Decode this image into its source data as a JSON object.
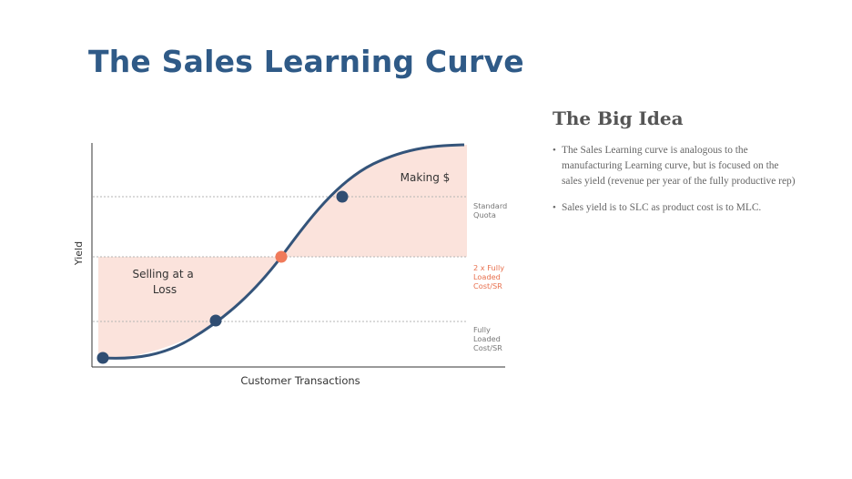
{
  "title": "The Sales Learning Curve",
  "diagram": {
    "y_axis_label": "Yield",
    "x_axis_label": "Customer Transactions",
    "region_labels": {
      "loss_line1": "Selling at a",
      "loss_line2": "Loss",
      "profit": "Making $"
    },
    "threshold_labels": {
      "quota": [
        "Standard",
        "Quota"
      ],
      "two_x": [
        "2 x Fully",
        "Loaded",
        "Cost/SR"
      ],
      "fully_loaded": [
        "Fully",
        "Loaded",
        "Cost/SR"
      ]
    },
    "colors": {
      "curve": "#34547a",
      "marker": "#2f4d72",
      "breakeven_marker": "#f07a5a",
      "shaded_region": "#fbe3dc",
      "two_x_label": "#e8704e",
      "gray_label": "#777777"
    }
  },
  "big_idea": {
    "heading": "The Big Idea",
    "bullets": [
      "The Sales Learning curve is analogous to the manufacturing Learning curve, but is focused on the sales yield (revenue per year of the fully productive rep)",
      "Sales yield is to SLC as product cost is to MLC."
    ]
  }
}
